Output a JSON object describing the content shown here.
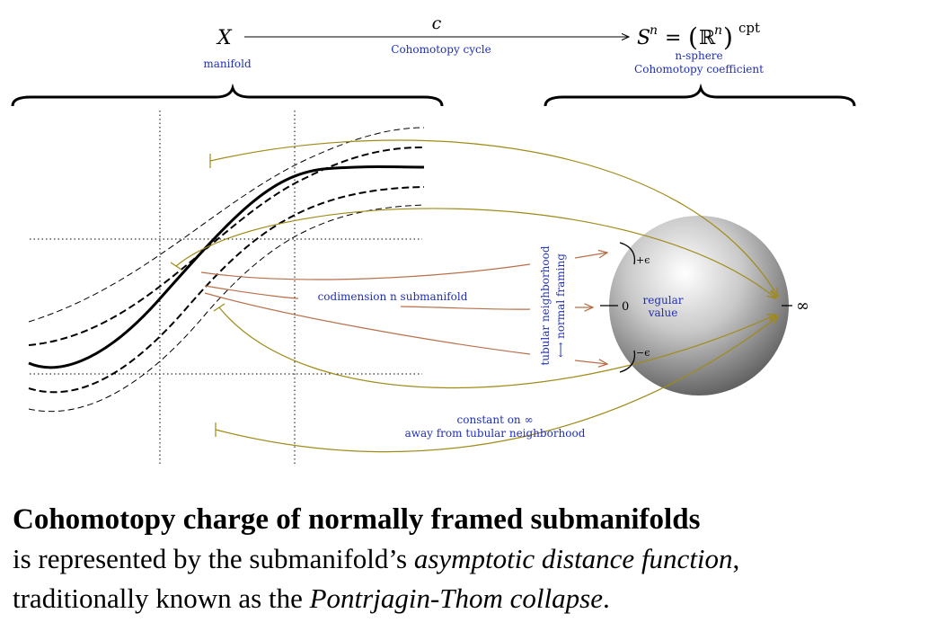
{
  "diagram": {
    "top_row": {
      "source": "X",
      "source_note": "manifold",
      "arrow_label": "c",
      "arrow_note": "Cohomotopy cycle",
      "target_lhs": "S",
      "target_sup": "n",
      "target_eq": "=",
      "target_paren_open": "(",
      "target_R": "ℝ",
      "target_R_sup": "n",
      "target_paren_close": ")",
      "target_cpt": "cpt",
      "target_note_1": "n-sphere",
      "target_note_2": "Cohomotopy coefficient"
    },
    "submanifold_label": "codimension n submanifold",
    "tubular_label_1": "tubular neighborhood",
    "tubular_label_2": "⟷ normal framing",
    "sphere": {
      "regular_value_1": "regular",
      "regular_value_2": "value",
      "plus_eps": "+ϵ",
      "zero": "0",
      "minus_eps": "−ϵ",
      "infinity": "∞"
    },
    "constant_label_1": "constant on ∞",
    "constant_label_2": "away from tubular neighborhood",
    "colors": {
      "label_blue": "#1f2fb4",
      "olive": "#a08a17",
      "brown": "#b8704a"
    }
  },
  "caption": {
    "title": "Cohomotopy charge of normally framed submanifolds",
    "line1_a": "is represented by the submanifold’s ",
    "line1_b": "asymptotic distance function",
    "line1_c": ",",
    "line2_a": "traditionally known as the ",
    "line2_b": "Pontrjagin-Thom collapse",
    "line2_c": "."
  }
}
